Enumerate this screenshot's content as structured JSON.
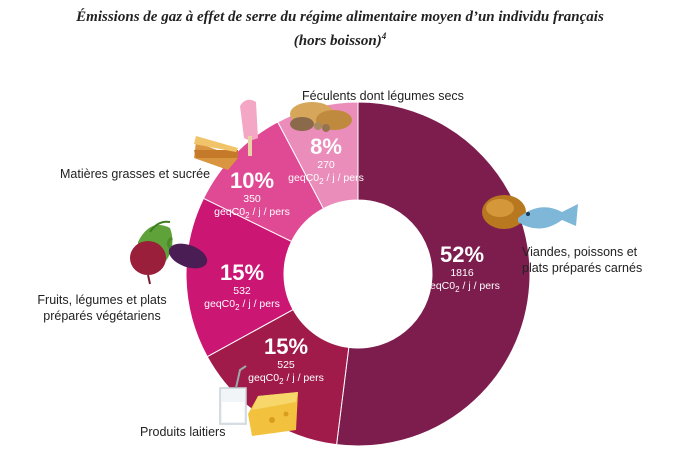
{
  "title": "Émissions de gaz à effet de serre du régime alimentaire moyen d’un individu français (hors boisson)",
  "title_note": "4",
  "unit_main": "geqC0",
  "unit_sub": "2",
  "unit_rest": " / j / pers",
  "icons": {
    "vegetables": "vegetables-icon",
    "desserts": "dessert-icon",
    "breads": "bread-icon",
    "meat_fish": "meat-fish-icon",
    "dairy": "dairy-icon"
  },
  "chart_data": {
    "type": "pie",
    "title": "Émissions de gaz à effet de serre du régime alimentaire moyen d’un individu français (hors boisson)",
    "unit": "geqCO2 / j / pers",
    "slices": [
      {
        "label": "Viandes, poissons et plats préparés carnés",
        "percent": "52%",
        "value": 1816,
        "value_text": "1816",
        "color": "#7d1d4e"
      },
      {
        "label": "Produits laitiers",
        "percent": "15%",
        "value": 525,
        "value_text": "525",
        "color": "#a01a4a"
      },
      {
        "label": "Fruits, légumes et plats préparés végétariens",
        "percent": "15%",
        "value": 532,
        "value_text": "532",
        "color": "#cc1674"
      },
      {
        "label": "Matières grasses et sucrée",
        "percent": "10%",
        "value": 350,
        "value_text": "350",
        "color": "#e04a94"
      },
      {
        "label": "Féculents dont légumes secs",
        "percent": "8%",
        "value": 270,
        "value_text": "270",
        "color": "#eb8dba"
      }
    ]
  }
}
